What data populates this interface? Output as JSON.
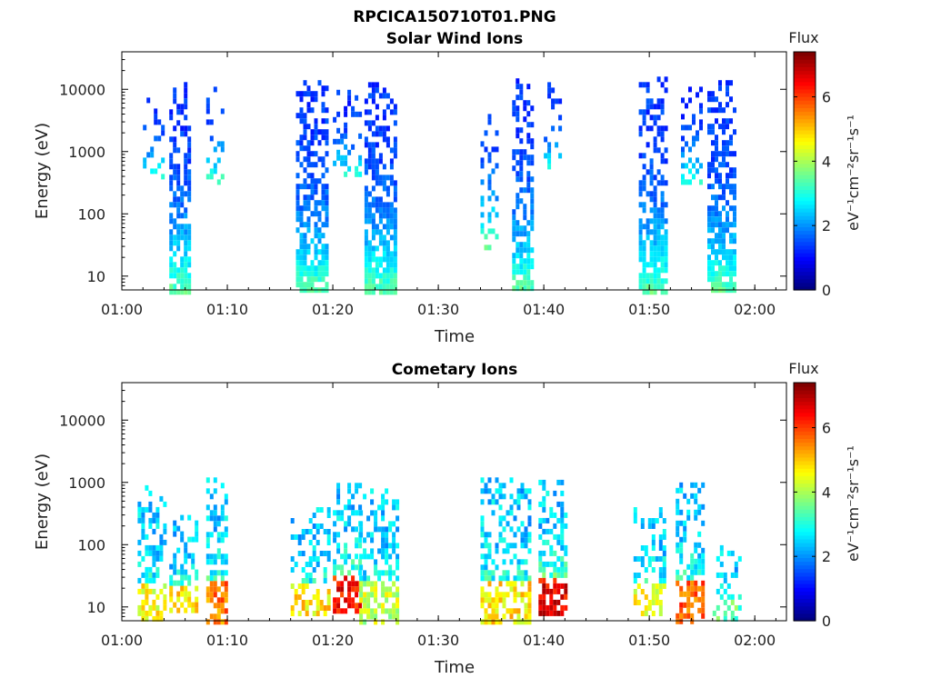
{
  "figure_title": "RPCICA150710T01.PNG",
  "colorbar_label": "Flux",
  "colorbar_units": "eV⁻¹cm⁻²sr⁻¹s⁻¹",
  "chart_data": [
    {
      "type": "heatmap",
      "title": "Solar Wind Ions",
      "xlabel": "Time",
      "ylabel": "Energy (eV)",
      "yscale": "log",
      "ylim": [
        6,
        40000
      ],
      "xlim": [
        "01:00",
        "02:03"
      ],
      "xticks": [
        "01:00",
        "01:10",
        "01:20",
        "01:30",
        "01:40",
        "01:50",
        "02:00"
      ],
      "yticks": [
        "10",
        "100",
        "1000",
        "10000"
      ],
      "colorbar_ticks": [
        "0",
        "2",
        "4",
        "6"
      ],
      "clim": [
        0,
        7.4
      ],
      "bursts": [
        {
          "t_start": "01:02",
          "t_end": "01:04",
          "e_min": 400,
          "e_max": 9000,
          "intensity": 2.1,
          "density": 0.28
        },
        {
          "t_start": "01:04.5",
          "t_end": "01:06.5",
          "e_min": 6,
          "e_max": 16000,
          "intensity": 2.2,
          "density": 0.7
        },
        {
          "t_start": "01:08",
          "t_end": "01:09.5",
          "e_min": 300,
          "e_max": 11000,
          "intensity": 2.3,
          "density": 0.3
        },
        {
          "t_start": "01:16.5",
          "t_end": "01:19.5",
          "e_min": 6,
          "e_max": 14000,
          "intensity": 2.2,
          "density": 0.7
        },
        {
          "t_start": "01:20",
          "t_end": "01:22.5",
          "e_min": 400,
          "e_max": 12000,
          "intensity": 2.1,
          "density": 0.3
        },
        {
          "t_start": "01:23",
          "t_end": "01:26",
          "e_min": 6,
          "e_max": 13000,
          "intensity": 2.2,
          "density": 0.72
        },
        {
          "t_start": "01:34",
          "t_end": "01:35.5",
          "e_min": 30,
          "e_max": 9000,
          "intensity": 2.3,
          "density": 0.25
        },
        {
          "t_start": "01:37",
          "t_end": "01:39",
          "e_min": 6,
          "e_max": 15000,
          "intensity": 2.2,
          "density": 0.72
        },
        {
          "t_start": "01:40",
          "t_end": "01:41.5",
          "e_min": 600,
          "e_max": 13000,
          "intensity": 2.0,
          "density": 0.3
        },
        {
          "t_start": "01:49",
          "t_end": "01:51.5",
          "e_min": 6,
          "e_max": 16000,
          "intensity": 2.2,
          "density": 0.7
        },
        {
          "t_start": "01:53",
          "t_end": "01:55",
          "e_min": 300,
          "e_max": 11000,
          "intensity": 2.1,
          "density": 0.3
        },
        {
          "t_start": "01:55.5",
          "t_end": "01:58",
          "e_min": 6,
          "e_max": 14000,
          "intensity": 2.2,
          "density": 0.72
        }
      ]
    },
    {
      "type": "heatmap",
      "title": "Cometary Ions",
      "xlabel": "Time",
      "ylabel": "Energy (eV)",
      "yscale": "log",
      "ylim": [
        6,
        40000
      ],
      "xlim": [
        "01:00",
        "02:03"
      ],
      "xticks": [
        "01:00",
        "01:10",
        "01:20",
        "01:30",
        "01:40",
        "01:50",
        "02:00"
      ],
      "yticks": [
        "10",
        "100",
        "1000",
        "10000"
      ],
      "colorbar_ticks": [
        "0",
        "2",
        "4",
        "6"
      ],
      "clim": [
        0,
        7.4
      ],
      "bursts": [
        {
          "t_start": "01:01.5",
          "t_end": "01:04",
          "e_min": 6,
          "e_max": 900,
          "intensity": 4.6,
          "density": 0.55
        },
        {
          "t_start": "01:04.5",
          "t_end": "01:07",
          "e_min": 8,
          "e_max": 300,
          "intensity": 4.8,
          "density": 0.55
        },
        {
          "t_start": "01:08",
          "t_end": "01:10",
          "e_min": 6,
          "e_max": 1200,
          "intensity": 5.6,
          "density": 0.55
        },
        {
          "t_start": "01:16",
          "t_end": "01:19.5",
          "e_min": 8,
          "e_max": 400,
          "intensity": 4.8,
          "density": 0.5
        },
        {
          "t_start": "01:20",
          "t_end": "01:22.5",
          "e_min": 8,
          "e_max": 1200,
          "intensity": 6.4,
          "density": 0.6
        },
        {
          "t_start": "01:22.5",
          "t_end": "01:26",
          "e_min": 6,
          "e_max": 800,
          "intensity": 4.2,
          "density": 0.6
        },
        {
          "t_start": "01:34",
          "t_end": "01:38.5",
          "e_min": 6,
          "e_max": 1200,
          "intensity": 4.8,
          "density": 0.55
        },
        {
          "t_start": "01:39.5",
          "t_end": "01:42",
          "e_min": 8,
          "e_max": 1100,
          "intensity": 6.6,
          "density": 0.6
        },
        {
          "t_start": "01:48.5",
          "t_end": "01:51.5",
          "e_min": 8,
          "e_max": 400,
          "intensity": 4.6,
          "density": 0.45
        },
        {
          "t_start": "01:52.5",
          "t_end": "01:55",
          "e_min": 6,
          "e_max": 1000,
          "intensity": 5.8,
          "density": 0.55
        },
        {
          "t_start": "01:56",
          "t_end": "01:58.5",
          "e_min": 6,
          "e_max": 120,
          "intensity": 3.4,
          "density": 0.35
        }
      ]
    }
  ]
}
